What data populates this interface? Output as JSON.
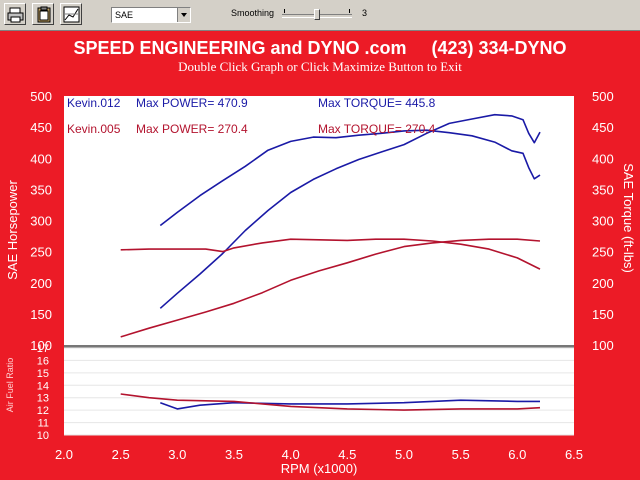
{
  "toolbar": {
    "buttons": [
      {
        "name": "print-icon"
      },
      {
        "name": "clipboard-icon"
      },
      {
        "name": "graph-options-icon"
      }
    ],
    "scale_select": "SAE",
    "smoothing_label": "Smoothing",
    "smoothing_value": "3"
  },
  "header": {
    "title": "SPEED ENGINEERING and DYNO .com     (423) 334-DYNO",
    "subtitle": "Double Click Graph or Click Maximize Button to Exit"
  },
  "colors": {
    "background": "#ec1b26",
    "plot": "#ffffff",
    "kevin012": "#1a1aa6",
    "kevin005": "#b3132e"
  },
  "chart_data": [
    {
      "type": "line",
      "xlabel": "RPM (x1000)",
      "ylabel": "SAE Horsepower",
      "y2label": "SAE Torque (ft-lbs)",
      "xlim": [
        2.0,
        6.5
      ],
      "ylim": [
        100,
        500
      ],
      "xticks": [
        "2.0",
        "2.5",
        "3.0",
        "3.5",
        "4.0",
        "4.5",
        "5.0",
        "5.5",
        "6.0",
        "6.5"
      ],
      "yticks": [
        "100",
        "150",
        "200",
        "250",
        "300",
        "350",
        "400",
        "450",
        "500"
      ],
      "legend": [
        {
          "run": "Kevin.012",
          "power_label": "Max POWER= 470.9",
          "torque_label": "Max TORQUE= 445.8"
        },
        {
          "run": "Kevin.005",
          "power_label": "Max POWER= 270.4",
          "torque_label": "Max TORQUE= 270.4"
        }
      ],
      "series": [
        {
          "run": "Kevin.012",
          "measure": "power",
          "x": [
            2.85,
            3.0,
            3.2,
            3.4,
            3.6,
            3.8,
            4.0,
            4.2,
            4.4,
            4.6,
            4.8,
            5.0,
            5.2,
            5.4,
            5.6,
            5.8,
            5.95,
            6.05,
            6.1,
            6.15,
            6.2
          ],
          "y": [
            159,
            183,
            214,
            247,
            284,
            316,
            345,
            366,
            383,
            398,
            410,
            422,
            440,
            456,
            463,
            470,
            468,
            462,
            440,
            425,
            442
          ]
        },
        {
          "run": "Kevin.012",
          "measure": "torque",
          "x": [
            2.85,
            3.0,
            3.2,
            3.4,
            3.6,
            3.8,
            4.0,
            4.2,
            4.4,
            4.6,
            4.8,
            5.0,
            5.2,
            5.4,
            5.6,
            5.8,
            5.95,
            6.05,
            6.1,
            6.15,
            6.2
          ],
          "y": [
            292,
            313,
            340,
            364,
            387,
            413,
            427,
            434,
            433,
            437,
            440,
            444,
            445,
            441,
            436,
            426,
            412,
            408,
            385,
            367,
            373
          ]
        },
        {
          "run": "Kevin.005",
          "measure": "power",
          "x": [
            2.5,
            2.75,
            3.0,
            3.25,
            3.5,
            3.75,
            4.0,
            4.25,
            4.5,
            4.75,
            5.0,
            5.25,
            5.5,
            5.75,
            6.0,
            6.2
          ],
          "y": [
            113,
            127,
            140,
            153,
            167,
            184,
            204,
            219,
            232,
            246,
            258,
            264,
            268,
            270,
            270,
            267
          ]
        },
        {
          "run": "Kevin.005",
          "measure": "torque",
          "x": [
            2.5,
            2.75,
            3.0,
            3.25,
            3.4,
            3.5,
            3.75,
            4.0,
            4.25,
            4.5,
            4.75,
            5.0,
            5.25,
            5.5,
            5.75,
            6.0,
            6.2
          ],
          "y": [
            253,
            254,
            254,
            254,
            250,
            256,
            264,
            270,
            269,
            268,
            270,
            270,
            267,
            262,
            254,
            240,
            222
          ]
        }
      ]
    },
    {
      "type": "line",
      "ylabel": "Air Fuel Ratio",
      "xlim": [
        2.0,
        6.5
      ],
      "ylim": [
        10,
        17
      ],
      "yticks": [
        "10",
        "11",
        "12",
        "13",
        "14",
        "15",
        "16",
        "17"
      ],
      "series": [
        {
          "run": "Kevin.012",
          "x": [
            2.85,
            3.0,
            3.2,
            3.5,
            4.0,
            4.5,
            5.0,
            5.5,
            6.0,
            6.2
          ],
          "y": [
            12.6,
            12.1,
            12.4,
            12.6,
            12.5,
            12.5,
            12.6,
            12.8,
            12.7,
            12.7
          ]
        },
        {
          "run": "Kevin.005",
          "x": [
            2.5,
            2.75,
            3.0,
            3.5,
            4.0,
            4.5,
            5.0,
            5.5,
            6.0,
            6.2
          ],
          "y": [
            13.3,
            13.0,
            12.8,
            12.7,
            12.3,
            12.1,
            12.0,
            12.1,
            12.1,
            12.2
          ]
        }
      ]
    }
  ]
}
